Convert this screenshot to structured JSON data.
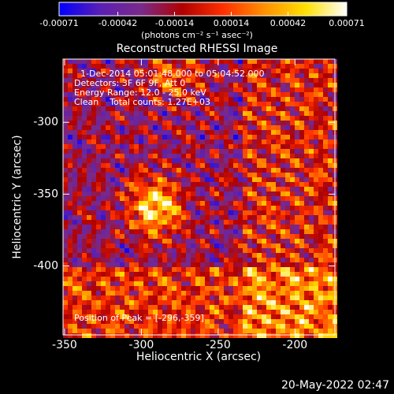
{
  "chart_data": {
    "type": "image",
    "title": "Reconstructed RHESSI Image",
    "xlabel": "Heliocentric X (arcsec)",
    "ylabel": "Heliocentric Y (arcsec)",
    "xlim": [
      -351,
      -174
    ],
    "xticks": [
      -350,
      -300,
      -250,
      -200
    ],
    "ylim": [
      -448,
      -256
    ],
    "yticks": [
      -400,
      -350,
      -300
    ],
    "colorbar": {
      "label": "(photons cm⁻² s⁻¹ asec⁻²)",
      "clim": [
        -0.00071,
        0.00071
      ],
      "ticks": [
        -0.00071,
        -0.00042,
        -0.00014,
        0.00014,
        0.00042,
        0.00071
      ],
      "colormap": [
        "#0000ff",
        "#5a1fb4",
        "#7a2a8a",
        "#b00000",
        "#ff3000",
        "#ff9000",
        "#ffe000",
        "#ffffff"
      ]
    },
    "annotations": [
      "1-Dec-2014 05:01:48.000 to 05:04:52.000",
      "Detectors: 3F 6F 9F, Att 0",
      "Energy Range: 12.0 - 25.0 keV",
      "Clean    Total counts: 1.27E+03"
    ],
    "peak_label": "Position of Peak = [-296,-359]",
    "footer": "20-May-2022 02:47"
  }
}
